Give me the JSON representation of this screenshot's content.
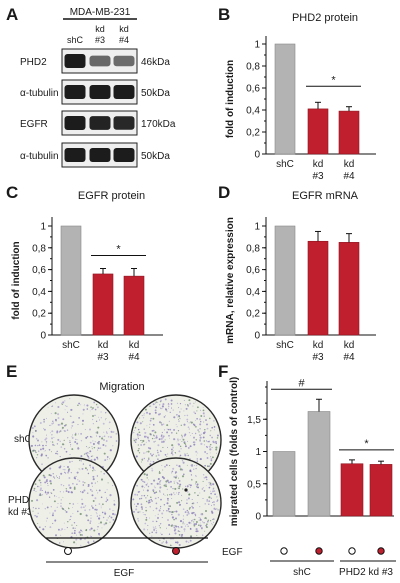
{
  "colors": {
    "control": "#b3b3b3",
    "knockdown": "#c0202e",
    "blot_bg": "#efefef",
    "band": "#1c1c1c"
  },
  "panel_letters": [
    "A",
    "B",
    "C",
    "D",
    "E",
    "F"
  ],
  "panel_a": {
    "cell_line": "MDA-MB-231",
    "lanes": [
      {
        "top": "",
        "bottom": "shC"
      },
      {
        "top": "kd",
        "bottom": "#3"
      },
      {
        "top": "kd",
        "bottom": "#4"
      }
    ],
    "blots": [
      {
        "protein": "PHD2",
        "size": "46kDa",
        "intensities": [
          1.0,
          0.45,
          0.42
        ]
      },
      {
        "protein": "α-tubulin",
        "size": "50kDa",
        "intensities": [
          1.0,
          1.0,
          1.0
        ]
      },
      {
        "protein": "EGFR",
        "size": "170kDa",
        "intensities": [
          1.0,
          0.95,
          0.9
        ]
      },
      {
        "protein": "α-tubulin",
        "size": "50kDa",
        "intensities": [
          1.0,
          1.0,
          1.0
        ]
      }
    ]
  },
  "panel_e": {
    "title": "Migration",
    "row_labels": [
      [
        "shC"
      ],
      [
        "PHD2",
        "kd #3"
      ]
    ],
    "xlabel": "EGF"
  },
  "chart_data": [
    {
      "panel": "B",
      "type": "bar",
      "title": "PHD2 protein",
      "ylabel": "fold of induction",
      "ylim": [
        0,
        1
      ],
      "yticks": [
        "0",
        "0,2",
        "0,4",
        "0,6",
        "0,8",
        "1"
      ],
      "categories": [
        [
          "shC"
        ],
        [
          "kd",
          "#3"
        ],
        [
          "kd",
          "#4"
        ]
      ],
      "values": [
        1.0,
        0.41,
        0.39
      ],
      "errors": [
        0,
        0.06,
        0.04
      ],
      "significance": [
        {
          "label": "*",
          "from": 1,
          "to": 2
        }
      ]
    },
    {
      "panel": "C",
      "type": "bar",
      "title": "EGFR protein",
      "ylabel": "fold of induction",
      "ylim": [
        0,
        1
      ],
      "yticks": [
        "0",
        "0,2",
        "0,4",
        "0,6",
        "0,8",
        "1"
      ],
      "categories": [
        [
          "shC"
        ],
        [
          "kd",
          "#3"
        ],
        [
          "kd",
          "#4"
        ]
      ],
      "values": [
        1.0,
        0.56,
        0.54
      ],
      "errors": [
        0,
        0.05,
        0.07
      ],
      "significance": [
        {
          "label": "*",
          "from": 1,
          "to": 2
        }
      ]
    },
    {
      "panel": "D",
      "type": "bar",
      "title": "EGFR mRNA",
      "ylabel": "mRNA, relative expression",
      "ylim": [
        0,
        1
      ],
      "yticks": [
        "0",
        "0,2",
        "0,4",
        "0,6",
        "0,8",
        "1"
      ],
      "categories": [
        [
          "shC"
        ],
        [
          "kd",
          "#3"
        ],
        [
          "kd",
          "#4"
        ]
      ],
      "values": [
        1.0,
        0.86,
        0.85
      ],
      "errors": [
        0,
        0.09,
        0.08
      ],
      "significance": []
    },
    {
      "panel": "F",
      "type": "bar",
      "title": "",
      "ylabel": "migrated cells (folds of control)",
      "ylim": [
        0,
        2
      ],
      "yticks": [
        "0",
        "0,5",
        "1",
        "1,5"
      ],
      "egf_label": "EGF",
      "egf": [
        "off",
        "on",
        "off",
        "on"
      ],
      "groups": [
        "shC",
        "PHD2 kd #3"
      ],
      "values": [
        1.0,
        1.62,
        0.81,
        0.8
      ],
      "errors": [
        0,
        0.19,
        0.06,
        0.05
      ],
      "significance": [
        {
          "label": "#",
          "from": 0,
          "to": 1
        },
        {
          "label": "*",
          "from": 2,
          "to": 3
        }
      ]
    }
  ]
}
